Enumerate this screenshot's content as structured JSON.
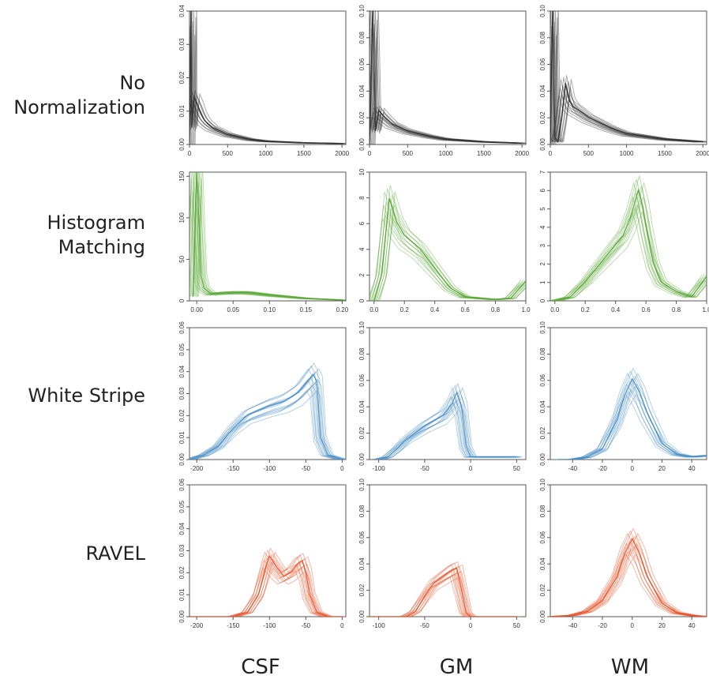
{
  "row_labels": [
    {
      "line1": "No",
      "line2": "Normalization"
    },
    {
      "line1": "Histogram",
      "line2": "Matching"
    },
    {
      "line1": "White Stripe",
      "line2": ""
    },
    {
      "line1": "RAVEL",
      "line2": ""
    }
  ],
  "col_labels": [
    "CSF",
    "GM",
    "WM"
  ],
  "colors": {
    "No Normalization": "#333333",
    "Histogram Matching": "#5aa838",
    "White Stripe": "#4a8fc4",
    "RAVEL": "#e8542a"
  },
  "chart_data": [
    {
      "type": "line",
      "row": "No Normalization",
      "col": "CSF",
      "xlim": [
        0,
        2050
      ],
      "ylim": [
        0,
        0.04
      ],
      "xticks": [
        "0",
        "500",
        "1000",
        "1500",
        "2000"
      ],
      "yticks": [
        "0.00",
        "0.01",
        "0.02",
        "0.03",
        "0.04"
      ],
      "series": [
        {
          "x": [
            0,
            20,
            30,
            45,
            60,
            100,
            150,
            200,
            300,
            500,
            800,
            1000,
            1500,
            2000
          ],
          "y": [
            0,
            0.04,
            0.005,
            0.01,
            0.014,
            0.012,
            0.009,
            0.007,
            0.005,
            0.003,
            0.0015,
            0.001,
            0.0005,
            0.0003
          ]
        }
      ]
    },
    {
      "type": "line",
      "row": "No Normalization",
      "col": "GM",
      "xlim": [
        0,
        2050
      ],
      "ylim": [
        0,
        0.1
      ],
      "xticks": [
        "0",
        "500",
        "1000",
        "1500",
        "2000"
      ],
      "yticks": [
        "0.00",
        "0.02",
        "0.04",
        "0.06",
        "0.08",
        "0.10"
      ],
      "series": [
        {
          "x": [
            0,
            20,
            40,
            60,
            80,
            120,
            200,
            300,
            500,
            800,
            1000,
            1500,
            2000
          ],
          "y": [
            0,
            0.04,
            0.098,
            0.06,
            0.01,
            0.025,
            0.02,
            0.015,
            0.01,
            0.006,
            0.004,
            0.002,
            0.001
          ]
        }
      ]
    },
    {
      "type": "line",
      "row": "No Normalization",
      "col": "WM",
      "xlim": [
        0,
        2050
      ],
      "ylim": [
        0,
        0.1
      ],
      "xticks": [
        "0",
        "500",
        "1000",
        "1500",
        "2000"
      ],
      "yticks": [
        "0.00",
        "0.02",
        "0.04",
        "0.06",
        "0.08",
        "0.10"
      ],
      "series": [
        {
          "x": [
            0,
            30,
            60,
            100,
            150,
            200,
            250,
            300,
            500,
            800,
            1000,
            1500,
            2000
          ],
          "y": [
            0,
            0.1,
            0.005,
            0.002,
            0.02,
            0.045,
            0.032,
            0.028,
            0.02,
            0.012,
            0.008,
            0.004,
            0.002
          ]
        }
      ]
    },
    {
      "type": "line",
      "row": "Histogram Matching",
      "col": "CSF",
      "xlim": [
        -0.01,
        0.205
      ],
      "ylim": [
        0,
        155
      ],
      "xticks": [
        "0.00",
        "0.05",
        "0.10",
        "0.15",
        "0.20"
      ],
      "yticks": [
        "0",
        "50",
        "100",
        "150"
      ],
      "series": [
        {
          "x": [
            -0.005,
            0,
            0.003,
            0.006,
            0.01,
            0.02,
            0.03,
            0.05,
            0.07,
            0.1,
            0.15,
            0.2
          ],
          "y": [
            5,
            155,
            90,
            30,
            15,
            8,
            9,
            10,
            10,
            7,
            3,
            1
          ]
        }
      ]
    },
    {
      "type": "line",
      "row": "Histogram Matching",
      "col": "GM",
      "xlim": [
        -0.03,
        1.0
      ],
      "ylim": [
        0,
        10
      ],
      "xticks": [
        "0.0",
        "0.2",
        "0.4",
        "0.6",
        "0.8",
        "1.0"
      ],
      "yticks": [
        "0",
        "2",
        "4",
        "6",
        "8",
        "10"
      ],
      "series": [
        {
          "x": [
            0,
            0.05,
            0.1,
            0.15,
            0.2,
            0.25,
            0.3,
            0.4,
            0.5,
            0.6,
            0.7,
            0.8,
            0.9,
            1.0
          ],
          "y": [
            0,
            2,
            7.8,
            6,
            5,
            4.5,
            4,
            2.5,
            1,
            0.3,
            0.2,
            0.1,
            0.2,
            1.5
          ]
        }
      ]
    },
    {
      "type": "line",
      "row": "Histogram Matching",
      "col": "WM",
      "xlim": [
        -0.03,
        1.0
      ],
      "ylim": [
        0,
        7
      ],
      "xticks": [
        "0.0",
        "0.2",
        "0.4",
        "0.6",
        "0.8",
        "1.0"
      ],
      "yticks": [
        "0",
        "1",
        "2",
        "3",
        "4",
        "5",
        "6",
        "7"
      ],
      "series": [
        {
          "x": [
            0,
            0.1,
            0.2,
            0.3,
            0.4,
            0.45,
            0.5,
            0.55,
            0.58,
            0.6,
            0.65,
            0.7,
            0.8,
            0.9,
            1.0
          ],
          "y": [
            0,
            0.2,
            1,
            2,
            3,
            3.5,
            4.5,
            5.9,
            5,
            4,
            2,
            1,
            0.5,
            0.2,
            1.3
          ]
        }
      ]
    },
    {
      "type": "line",
      "row": "White Stripe",
      "col": "CSF",
      "xlim": [
        -210,
        5
      ],
      "ylim": [
        0,
        0.06
      ],
      "xticks": [
        "-200",
        "-150",
        "-100",
        "-50",
        "0"
      ],
      "yticks": [
        "0.00",
        "0.01",
        "0.02",
        "0.03",
        "0.04",
        "0.05",
        "0.06"
      ],
      "series": [
        {
          "x": [
            -210,
            -190,
            -170,
            -150,
            -130,
            -100,
            -80,
            -60,
            -50,
            -40,
            -35,
            -30,
            -20,
            0
          ],
          "y": [
            0,
            0.002,
            0.006,
            0.014,
            0.02,
            0.024,
            0.026,
            0.03,
            0.034,
            0.038,
            0.035,
            0.01,
            0.002,
            0
          ]
        }
      ]
    },
    {
      "type": "line",
      "row": "White Stripe",
      "col": "GM",
      "xlim": [
        -110,
        60
      ],
      "ylim": [
        0,
        0.1
      ],
      "xticks": [
        "-100",
        "-50",
        "0",
        "50"
      ],
      "yticks": [
        "0.00",
        "0.02",
        "0.04",
        "0.06",
        "0.08",
        "0.10"
      ],
      "series": [
        {
          "x": [
            -100,
            -90,
            -80,
            -70,
            -50,
            -30,
            -20,
            -15,
            -10,
            -5,
            0,
            50
          ],
          "y": [
            0,
            0.002,
            0.008,
            0.015,
            0.025,
            0.033,
            0.042,
            0.05,
            0.04,
            0.01,
            0.002,
            0.002
          ]
        }
      ]
    },
    {
      "type": "line",
      "row": "White Stripe",
      "col": "WM",
      "xlim": [
        -55,
        50
      ],
      "ylim": [
        0,
        0.1
      ],
      "xticks": [
        "-40",
        "-20",
        "0",
        "20",
        "40"
      ],
      "yticks": [
        "0.00",
        "0.02",
        "0.04",
        "0.06",
        "0.08",
        "0.10"
      ],
      "series": [
        {
          "x": [
            -50,
            -40,
            -30,
            -20,
            -10,
            -5,
            0,
            5,
            10,
            20,
            30,
            40,
            50
          ],
          "y": [
            0,
            0,
            0.002,
            0.008,
            0.03,
            0.048,
            0.06,
            0.05,
            0.035,
            0.012,
            0.004,
            0.002,
            0.003
          ]
        }
      ]
    },
    {
      "type": "line",
      "row": "RAVEL",
      "col": "CSF",
      "xlim": [
        -210,
        5
      ],
      "ylim": [
        0,
        0.06
      ],
      "xticks": [
        "-200",
        "-150",
        "-100",
        "-50",
        "0"
      ],
      "yticks": [
        "0.00",
        "0.01",
        "0.02",
        "0.03",
        "0.04",
        "0.05",
        "0.06"
      ],
      "series": [
        {
          "x": [
            -210,
            -150,
            -130,
            -115,
            -105,
            -100,
            -90,
            -80,
            -70,
            -60,
            -55,
            -50,
            -45,
            -35,
            -20,
            0
          ],
          "y": [
            0,
            0,
            0.002,
            0.01,
            0.022,
            0.027,
            0.022,
            0.018,
            0.02,
            0.024,
            0.025,
            0.02,
            0.01,
            0.002,
            0,
            0
          ]
        }
      ]
    },
    {
      "type": "line",
      "row": "RAVEL",
      "col": "GM",
      "xlim": [
        -110,
        60
      ],
      "ylim": [
        0,
        0.1
      ],
      "xticks": [
        "-100",
        "-50",
        "0",
        "50"
      ],
      "yticks": [
        "0.00",
        "0.02",
        "0.04",
        "0.06",
        "0.08",
        "0.10"
      ],
      "series": [
        {
          "x": [
            -110,
            -70,
            -60,
            -50,
            -40,
            -30,
            -20,
            -15,
            -10,
            -5,
            0,
            50
          ],
          "y": [
            0,
            0,
            0.004,
            0.015,
            0.025,
            0.03,
            0.035,
            0.036,
            0.02,
            0.003,
            0,
            0
          ]
        }
      ]
    },
    {
      "type": "line",
      "row": "RAVEL",
      "col": "WM",
      "xlim": [
        -55,
        50
      ],
      "ylim": [
        0,
        0.1
      ],
      "xticks": [
        "-40",
        "-20",
        "0",
        "20",
        "40"
      ],
      "yticks": [
        "0.00",
        "0.02",
        "0.04",
        "0.06",
        "0.08",
        "0.10"
      ],
      "series": [
        {
          "x": [
            -55,
            -40,
            -30,
            -20,
            -10,
            -5,
            0,
            5,
            10,
            20,
            30,
            40,
            50
          ],
          "y": [
            0,
            0.001,
            0.004,
            0.012,
            0.03,
            0.047,
            0.058,
            0.047,
            0.03,
            0.01,
            0.003,
            0.001,
            0
          ]
        }
      ]
    }
  ]
}
